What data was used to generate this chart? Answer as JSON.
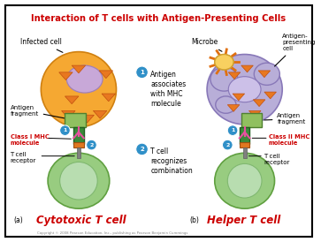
{
  "title": "Interaction of T cells with Antigen-Presenting Cells",
  "title_color": "#cc0000",
  "background_color": "#ffffff",
  "border_color": "#000000",
  "fig_width": 3.63,
  "fig_height": 2.74,
  "labels": {
    "infected_cell": "Infected cell",
    "antigen_fragment_a": "Antigen\nfragment",
    "class_I_MHC": "Class I MHC\nmolecule",
    "T_cell_receptor_a": "T cell\nreceptor",
    "label_a": "(a)",
    "cytotoxic": "Cytotoxic T cell",
    "step1_num": "1",
    "step1_text": "Antigen\nassociates\nwith MHC\nmolecule",
    "step2_num": "2",
    "step2_text": "T cell\nrecognizes\ncombination",
    "microbe": "Microbe",
    "antigen_presenting": "Antigen-\npresenting\ncell",
    "antigen_fragment_b": "Antigen\nfragment",
    "class_II_MHC": "Class II MHC\nmolecule",
    "T_cell_receptor_b": "T cell\nreceptor",
    "label_b": "(b)",
    "helper": "Helper T cell",
    "copyright": "Copyright © 2008 Pearson Education, Inc., publishing as Pearson Benjamin Cummings"
  },
  "colors": {
    "infected_cell_fill": "#f5a832",
    "infected_cell_edge": "#d08010",
    "infected_cell_nucleus": "#c8a8d8",
    "nucleus_edge": "#a080b8",
    "antigen_fragment": "#90c060",
    "antigen_fragment_edge": "#508030",
    "MHC_green": "#3a8a3a",
    "MHC_orange": "#e07820",
    "MHC_stalk": "#808080",
    "T_cell_fill": "#98cc80",
    "T_cell_edge": "#60a040",
    "T_cell_nucleus": "#b8ddb0",
    "T_cell_nucleus_edge": "#80b870",
    "apc_fill": "#b8aed8",
    "apc_edge": "#8878b8",
    "apc_nucleus_fill": "#ccc0e8",
    "microbe_fill": "#f8d060",
    "microbe_edge": "#d0a030",
    "microbe_spike": "#e07010",
    "orange_tri": "#e87820",
    "orange_tri_edge": "#c05010",
    "step_circle": "#3090c8",
    "white": "#ffffff",
    "red_text": "#cc0000",
    "black": "#000000",
    "pink": "#e850a0",
    "gray": "#808080"
  }
}
